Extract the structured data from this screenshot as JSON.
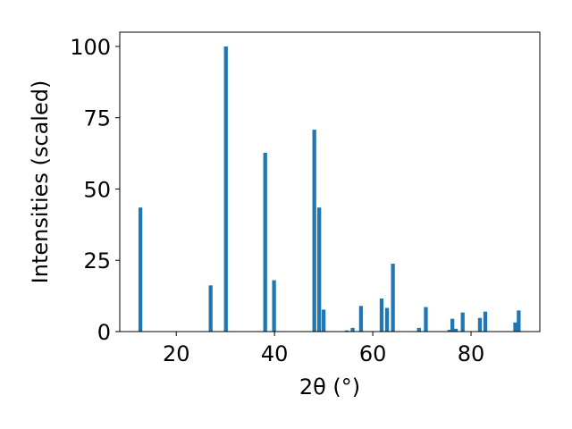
{
  "chart_data": {
    "type": "bar",
    "xlabel": "2θ (°)",
    "ylabel": "Intensities (scaled)",
    "xlim": [
      8.5,
      94.0
    ],
    "ylim": [
      0,
      105
    ],
    "xticks": [
      20,
      40,
      60,
      80
    ],
    "yticks": [
      0,
      25,
      50,
      75,
      100
    ],
    "bar_color": "#1f77b4",
    "grid": false,
    "points": [
      {
        "x": 12.7,
        "y": 43.5
      },
      {
        "x": 27.0,
        "y": 16.2
      },
      {
        "x": 30.1,
        "y": 100.0
      },
      {
        "x": 38.1,
        "y": 62.7
      },
      {
        "x": 39.9,
        "y": 18.0
      },
      {
        "x": 48.1,
        "y": 70.8
      },
      {
        "x": 49.1,
        "y": 43.5
      },
      {
        "x": 50.0,
        "y": 7.7
      },
      {
        "x": 54.7,
        "y": 0.4
      },
      {
        "x": 55.9,
        "y": 1.3
      },
      {
        "x": 57.6,
        "y": 9.0
      },
      {
        "x": 61.8,
        "y": 11.6
      },
      {
        "x": 62.9,
        "y": 8.3
      },
      {
        "x": 64.1,
        "y": 23.8
      },
      {
        "x": 69.4,
        "y": 1.3
      },
      {
        "x": 70.8,
        "y": 8.6
      },
      {
        "x": 75.6,
        "y": 0.6
      },
      {
        "x": 76.2,
        "y": 4.5
      },
      {
        "x": 76.9,
        "y": 1.0
      },
      {
        "x": 78.3,
        "y": 6.7
      },
      {
        "x": 81.8,
        "y": 4.8
      },
      {
        "x": 82.9,
        "y": 7.0
      },
      {
        "x": 89.0,
        "y": 3.2
      },
      {
        "x": 89.7,
        "y": 7.4
      }
    ]
  }
}
